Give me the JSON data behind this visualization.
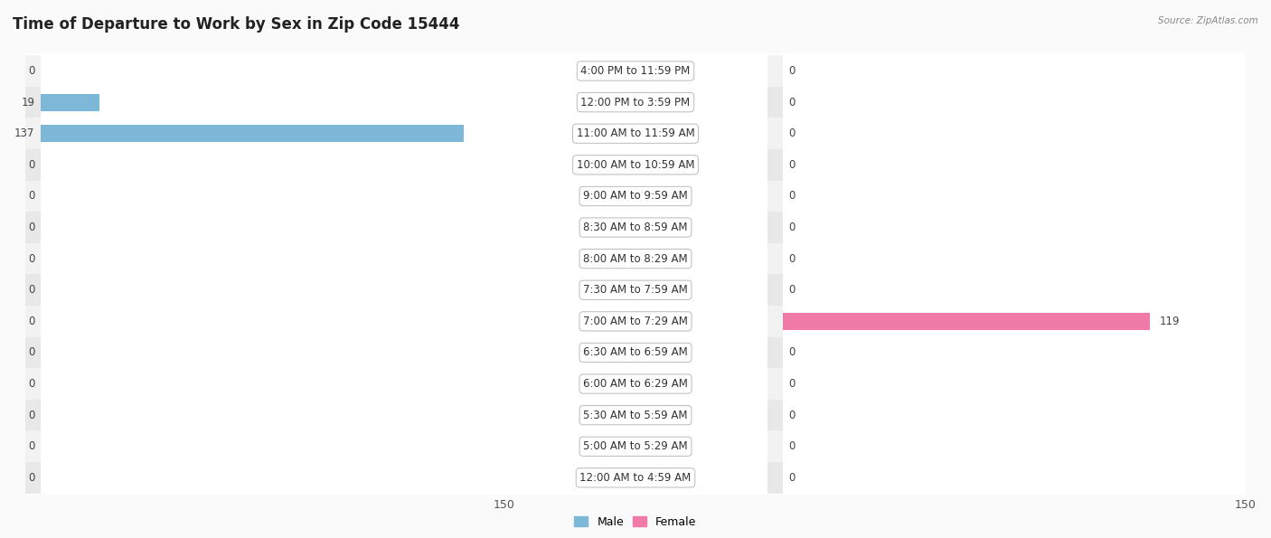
{
  "title": "Time of Departure to Work by Sex in Zip Code 15444",
  "source": "Source: ZipAtlas.com",
  "categories": [
    "12:00 AM to 4:59 AM",
    "5:00 AM to 5:29 AM",
    "5:30 AM to 5:59 AM",
    "6:00 AM to 6:29 AM",
    "6:30 AM to 6:59 AM",
    "7:00 AM to 7:29 AM",
    "7:30 AM to 7:59 AM",
    "8:00 AM to 8:29 AM",
    "8:30 AM to 8:59 AM",
    "9:00 AM to 9:59 AM",
    "10:00 AM to 10:59 AM",
    "11:00 AM to 11:59 AM",
    "12:00 PM to 3:59 PM",
    "4:00 PM to 11:59 PM"
  ],
  "male_values": [
    0,
    0,
    0,
    0,
    0,
    0,
    0,
    0,
    0,
    0,
    0,
    137,
    19,
    0
  ],
  "female_values": [
    0,
    0,
    0,
    0,
    0,
    119,
    0,
    0,
    0,
    0,
    0,
    0,
    0,
    0
  ],
  "male_color": "#7db8d8",
  "female_color": "#f07aa8",
  "male_label": "Male",
  "female_label": "Female",
  "xlim": 150,
  "row_colors": [
    "#e8e8e8",
    "#f2f2f2"
  ],
  "title_fontsize": 12,
  "label_fontsize": 8.5,
  "value_fontsize": 8.5,
  "tick_fontsize": 9,
  "fig_bg": "#fafafa"
}
